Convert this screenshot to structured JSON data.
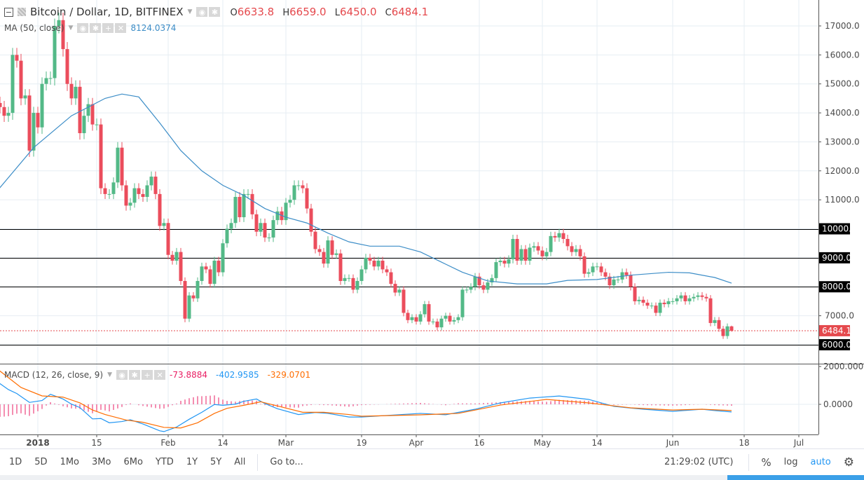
{
  "header": {
    "symbol_title": "Bitcoin / Dollar, 1D, BITFINEX",
    "open_label": "O",
    "open": "6633.8",
    "high_label": "H",
    "high": "6659.0",
    "low_label": "L",
    "low": "6450.0",
    "close_label": "C",
    "close": "6484.1"
  },
  "ma_legend": {
    "label": "MA (50, close)",
    "value": "8124.0374"
  },
  "macd_legend": {
    "label": "MACD (12, 26, close, 9)",
    "histogram": "-73.8884",
    "macd": "-402.9585",
    "signal": "-329.0701"
  },
  "colors": {
    "up": "#53b987",
    "down": "#eb4d5c",
    "ma": "#3c8dc7",
    "macd": "#2196f3",
    "signal": "#ff6d00",
    "histogram": "#e91e63",
    "level": "#000000",
    "last_price": "#e5494d"
  },
  "price_axis": {
    "ticks": [
      "17000.0",
      "16000.0",
      "15000.0",
      "14000.0",
      "13000.0",
      "12000.0",
      "11000.0",
      "10000.0",
      "9000.0",
      "8000.0",
      "7000.0",
      "6000.0"
    ],
    "levels": [
      "10000.0",
      "9000.0",
      "8000.0",
      "6000.0"
    ],
    "last_price": "6484.1"
  },
  "macd_axis": {
    "ticks": [
      "2000.0000",
      "0.0000"
    ]
  },
  "time_axis": {
    "ticks": [
      {
        "label": "2018",
        "date": "2018-01-01",
        "bold": true
      },
      {
        "label": "15",
        "date": "2018-01-15"
      },
      {
        "label": "Feb",
        "date": "2018-02-01"
      },
      {
        "label": "14",
        "date": "2018-02-14"
      },
      {
        "label": "Mar",
        "date": "2018-03-01"
      },
      {
        "label": "19",
        "date": "2018-03-19"
      },
      {
        "label": "Apr",
        "date": "2018-04-01"
      },
      {
        "label": "16",
        "date": "2018-04-16"
      },
      {
        "label": "May",
        "date": "2018-05-01"
      },
      {
        "label": "14",
        "date": "2018-05-14"
      },
      {
        "label": "Jun",
        "date": "2018-06-01"
      },
      {
        "label": "18",
        "date": "2018-06-18"
      },
      {
        "label": "Jul",
        "date": "2018-07-01"
      }
    ]
  },
  "candles": {
    "first_date": "2017-12-23",
    "last_ohlc": [
      6633.8,
      6659.0,
      6450.0,
      6484.1
    ],
    "close": [
      14200,
      13900,
      14000,
      16000,
      15800,
      14500,
      14600,
      12700,
      14000,
      13500,
      15000,
      15200,
      15200,
      17000,
      17200,
      16200,
      15000,
      14500,
      14900,
      13300,
      13900,
      14300,
      13600,
      13600,
      11400,
      11200,
      11200,
      11600,
      12800,
      11500,
      10800,
      10900,
      11400,
      11200,
      11100,
      11500,
      11800,
      11200,
      10100,
      10200,
      9100,
      8900,
      9200,
      8200,
      6900,
      7700,
      7600,
      8200,
      8700,
      8600,
      8100,
      8900,
      8500,
      9500,
      10000,
      10200,
      11100,
      10400,
      11200,
      11200,
      10500,
      9900,
      10200,
      9700,
      9700,
      10300,
      10600,
      10300,
      10900,
      11000,
      11500,
      11500,
      11400,
      10700,
      9900,
      9300,
      9200,
      8800,
      9600,
      9100,
      9150,
      8200,
      8300,
      8300,
      7900,
      8200,
      8600,
      9000,
      8900,
      8700,
      8900,
      8600,
      8500,
      8100,
      7800,
      7900,
      7100,
      6850,
      6950,
      6800,
      7050,
      7400,
      6800,
      6800,
      6600,
      6900,
      7000,
      6800,
      6850,
      6950,
      7900,
      7900,
      8000,
      8350,
      8050,
      7900,
      8150,
      8300,
      8850,
      8900,
      8800,
      8950,
      9650,
      8900,
      9300,
      8900,
      9350,
      9400,
      9250,
      9050,
      9200,
      9750,
      9700,
      9850,
      9650,
      9400,
      9200,
      9300,
      9050,
      8450,
      8500,
      8700,
      8700,
      8500,
      8350,
      8050,
      8250,
      8250,
      8500,
      8400,
      8000,
      7500,
      7550,
      7450,
      7350,
      7350,
      7100,
      7450,
      7400,
      7500,
      7500,
      7600,
      7700,
      7500,
      7600,
      7650,
      7700,
      7650,
      7600,
      6750,
      6850,
      6550,
      6300,
      6633.8,
      6484.1
    ]
  },
  "ma50": [
    [
      "2017-12-22",
      11250
    ],
    [
      "2017-12-31",
      12800
    ],
    [
      "2018-01-09",
      13900
    ],
    [
      "2018-01-17",
      14500
    ],
    [
      "2018-01-21",
      14650
    ],
    [
      "2018-01-25",
      14550
    ],
    [
      "2018-01-30",
      13650
    ],
    [
      "2018-02-04",
      12700
    ],
    [
      "2018-02-09",
      12000
    ],
    [
      "2018-02-14",
      11500
    ],
    [
      "2018-02-19",
      11150
    ],
    [
      "2018-02-24",
      10700
    ],
    [
      "2018-03-01",
      10400
    ],
    [
      "2018-03-06",
      10200
    ],
    [
      "2018-03-11",
      9850
    ],
    [
      "2018-03-16",
      9550
    ],
    [
      "2018-03-21",
      9400
    ],
    [
      "2018-03-28",
      9400
    ],
    [
      "2018-04-02",
      9200
    ],
    [
      "2018-04-07",
      8850
    ],
    [
      "2018-04-12",
      8500
    ],
    [
      "2018-04-18",
      8200
    ],
    [
      "2018-04-25",
      8100
    ],
    [
      "2018-05-02",
      8100
    ],
    [
      "2018-05-07",
      8220
    ],
    [
      "2018-05-14",
      8250
    ],
    [
      "2018-05-22",
      8400
    ],
    [
      "2018-05-31",
      8500
    ],
    [
      "2018-06-05",
      8480
    ],
    [
      "2018-06-11",
      8320
    ],
    [
      "2018-06-15",
      8124.04
    ]
  ],
  "macd": [
    [
      "2017-12-22",
      1250
    ],
    [
      "2017-12-25",
      780
    ],
    [
      "2017-12-27",
      570
    ],
    [
      "2017-12-30",
      100
    ],
    [
      "2018-01-02",
      200
    ],
    [
      "2018-01-04",
      530
    ],
    [
      "2018-01-07",
      280
    ],
    [
      "2018-01-09",
      10
    ],
    [
      "2018-01-11",
      -170
    ],
    [
      "2018-01-14",
      -770
    ],
    [
      "2018-01-16",
      -750
    ],
    [
      "2018-01-18",
      -975
    ],
    [
      "2018-01-21",
      -910
    ],
    [
      "2018-01-23",
      -815
    ],
    [
      "2018-01-26",
      -1040
    ],
    [
      "2018-01-30",
      -1400
    ],
    [
      "2018-01-31",
      -1440
    ],
    [
      "2018-02-03",
      -1200
    ],
    [
      "2018-02-06",
      -790
    ],
    [
      "2018-02-09",
      -420
    ],
    [
      "2018-02-12",
      -10
    ],
    [
      "2018-02-14",
      -50
    ],
    [
      "2018-02-17",
      10
    ],
    [
      "2018-02-19",
      160
    ],
    [
      "2018-02-22",
      280
    ],
    [
      "2018-02-24",
      40
    ],
    [
      "2018-02-27",
      -235
    ],
    [
      "2018-03-04",
      -540
    ],
    [
      "2018-03-08",
      -430
    ],
    [
      "2018-03-11",
      -480
    ],
    [
      "2018-03-16",
      -670
    ],
    [
      "2018-03-19",
      -670
    ],
    [
      "2018-04-02",
      -480
    ],
    [
      "2018-04-08",
      -550
    ],
    [
      "2018-04-15",
      -260
    ],
    [
      "2018-04-21",
      75
    ],
    [
      "2018-04-28",
      330
    ],
    [
      "2018-05-05",
      440
    ],
    [
      "2018-05-12",
      260
    ],
    [
      "2018-05-18",
      -110
    ],
    [
      "2018-05-25",
      -260
    ],
    [
      "2018-06-01",
      -370
    ],
    [
      "2018-06-08",
      -260
    ],
    [
      "2018-06-11",
      -330
    ],
    [
      "2018-06-15",
      -402.96
    ]
  ],
  "signal": [
    [
      "2017-12-22",
      1930
    ],
    [
      "2017-12-28",
      890
    ],
    [
      "2018-01-02",
      445
    ],
    [
      "2018-01-07",
      380
    ],
    [
      "2018-01-11",
      75
    ],
    [
      "2018-01-14",
      -300
    ],
    [
      "2018-01-17",
      -540
    ],
    [
      "2018-01-22",
      -830
    ],
    [
      "2018-01-26",
      -950
    ],
    [
      "2018-01-31",
      -1220
    ],
    [
      "2018-02-04",
      -1250
    ],
    [
      "2018-02-08",
      -975
    ],
    [
      "2018-02-12",
      -480
    ],
    [
      "2018-02-15",
      -210
    ],
    [
      "2018-02-19",
      -50
    ],
    [
      "2018-02-23",
      135
    ],
    [
      "2018-02-27",
      -85
    ],
    [
      "2018-03-05",
      -420
    ],
    [
      "2018-03-10",
      -420
    ],
    [
      "2018-03-16",
      -540
    ],
    [
      "2018-03-19",
      -630
    ],
    [
      "2018-04-02",
      -555
    ],
    [
      "2018-04-11",
      -480
    ],
    [
      "2018-04-21",
      -40
    ],
    [
      "2018-05-02",
      260
    ],
    [
      "2018-05-12",
      75
    ],
    [
      "2018-05-22",
      -185
    ],
    [
      "2018-06-01",
      -300
    ],
    [
      "2018-06-08",
      -260
    ],
    [
      "2018-06-15",
      -329.07
    ]
  ],
  "toolbar": {
    "ranges": [
      "1D",
      "5D",
      "1Mo",
      "3Mo",
      "6Mo",
      "YTD",
      "1Y",
      "5Y",
      "All"
    ],
    "goto": "Go to...",
    "clock": "21:29:02 (UTC)",
    "percent": "%",
    "log": "log",
    "auto": "auto"
  }
}
